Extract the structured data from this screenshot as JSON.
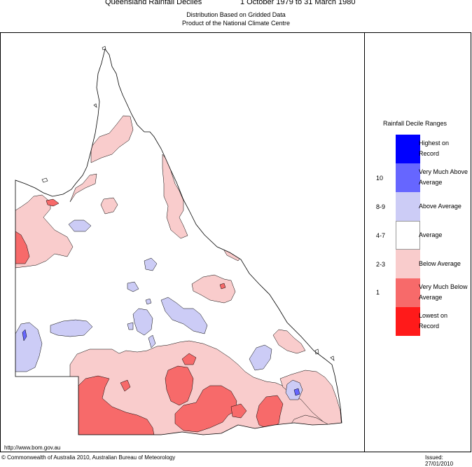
{
  "header": {
    "title": "Queensland Rainfall Deciles",
    "dates": "1 October 1979 to 31 March 1980",
    "subtitle1": "Distribution Based on Gridded Data",
    "subtitle2": "Product of the National Climate Centre"
  },
  "legend": {
    "title": "Rainfall Decile Ranges",
    "items": [
      {
        "range": "",
        "label": "Highest on Record",
        "color": "#0000ff"
      },
      {
        "range": "10",
        "label": "Very Much Above Average",
        "color": "#6666ff"
      },
      {
        "range": "8-9",
        "label": "Above Average",
        "color": "#ccccf6"
      },
      {
        "range": "4-7",
        "label": "Average",
        "color": "#ffffff"
      },
      {
        "range": "2-3",
        "label": "Below Average",
        "color": "#f9cccc"
      },
      {
        "range": "1",
        "label": "Very Much Below Average",
        "color": "#f76a6a"
      },
      {
        "range": "",
        "label": "Lowest on Record",
        "color": "#ff1a1a"
      }
    ]
  },
  "footer": {
    "url": "http://www.bom.gov.au",
    "copyright": "© Commonwealth of Australia 2010, Australian Bureau of Meteorology",
    "issued": "Issued: 27/01/2010"
  },
  "map": {
    "colors": {
      "below": "#f9cccc",
      "very_below": "#f76a6a",
      "above": "#ccccf6",
      "very_above": "#6666ff",
      "outline": "#000000"
    }
  }
}
